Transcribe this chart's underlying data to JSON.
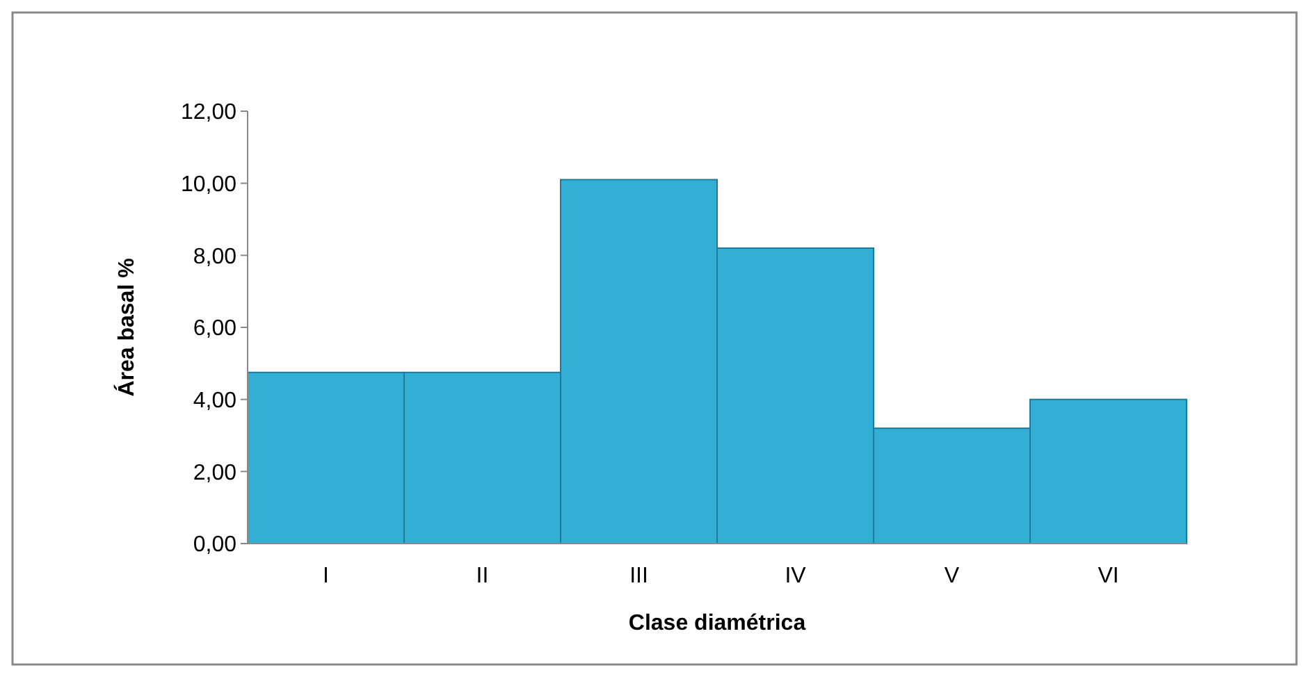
{
  "chart_data": {
    "type": "bar",
    "xlabel": "Clase diamétrica",
    "ylabel": "Área basal %",
    "categories": [
      "I",
      "II",
      "III",
      "IV",
      "V",
      "VI"
    ],
    "values": [
      4.75,
      4.75,
      10.1,
      8.2,
      3.2,
      4.0
    ],
    "color": "#33aed4",
    "ylim": [
      0,
      12
    ],
    "yticks": [
      {
        "value": 0,
        "label": "0,00"
      },
      {
        "value": 2,
        "label": "2,00"
      },
      {
        "value": 4,
        "label": "4,00"
      },
      {
        "value": 6,
        "label": "6,00"
      },
      {
        "value": 8,
        "label": "8,00"
      },
      {
        "value": 10,
        "label": "10,00"
      },
      {
        "value": 12,
        "label": "12,00"
      }
    ],
    "grid": false
  }
}
